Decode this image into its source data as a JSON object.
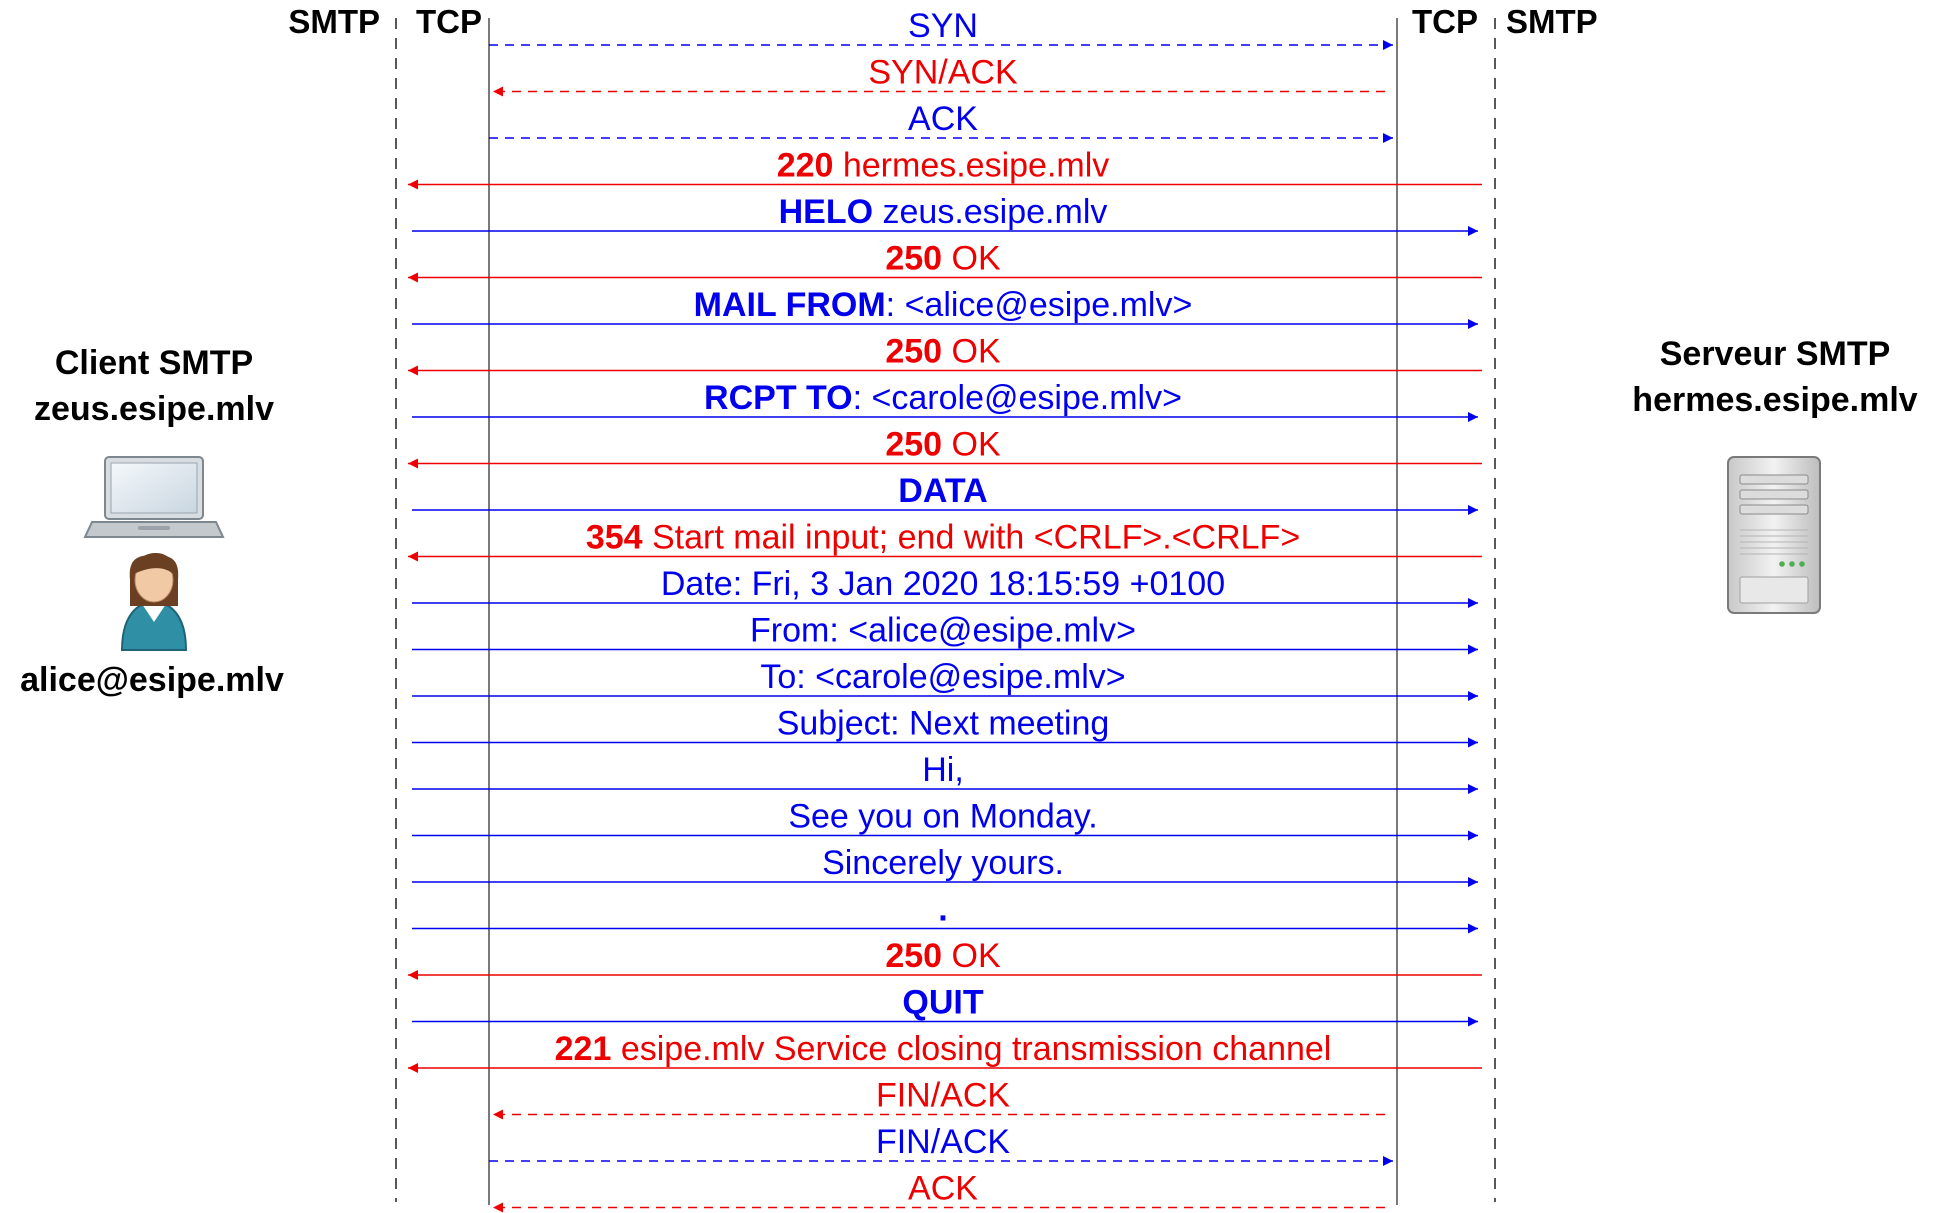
{
  "colors": {
    "client": "#0000ee",
    "server": "#ee0000",
    "text": "#000000"
  },
  "headers": {
    "left_smtp": "SMTP",
    "left_tcp": "TCP",
    "right_tcp": "TCP",
    "right_smtp": "SMTP"
  },
  "client": {
    "title": "Client SMTP",
    "host": "zeus.esipe.mlv",
    "user": "alice@esipe.mlv",
    "icons": [
      "laptop-icon",
      "user-icon"
    ]
  },
  "server": {
    "title": "Serveur SMTP",
    "host": "hermes.esipe.mlv",
    "icons": [
      "server-icon"
    ]
  },
  "messages": [
    {
      "layer": "tcp",
      "dir": "right",
      "bold": "",
      "text": "SYN"
    },
    {
      "layer": "tcp",
      "dir": "left",
      "bold": "",
      "text": "SYN/ACK"
    },
    {
      "layer": "tcp",
      "dir": "right",
      "bold": "",
      "text": "ACK"
    },
    {
      "layer": "smtp",
      "dir": "left",
      "bold": "220",
      "text": " hermes.esipe.mlv"
    },
    {
      "layer": "smtp",
      "dir": "right",
      "bold": "HELO",
      "text": " zeus.esipe.mlv"
    },
    {
      "layer": "smtp",
      "dir": "left",
      "bold": "250",
      "text": " OK"
    },
    {
      "layer": "smtp",
      "dir": "right",
      "bold": "MAIL FROM",
      "text": ": <alice@esipe.mlv>"
    },
    {
      "layer": "smtp",
      "dir": "left",
      "bold": "250",
      "text": " OK"
    },
    {
      "layer": "smtp",
      "dir": "right",
      "bold": "RCPT TO",
      "text": ": <carole@esipe.mlv>"
    },
    {
      "layer": "smtp",
      "dir": "left",
      "bold": "250",
      "text": " OK"
    },
    {
      "layer": "smtp",
      "dir": "right",
      "bold": "DATA",
      "text": ""
    },
    {
      "layer": "smtp",
      "dir": "left",
      "bold": "354",
      "text": " Start mail input; end with <CRLF>.<CRLF>"
    },
    {
      "layer": "smtp",
      "dir": "right",
      "bold": "",
      "text": "Date: Fri, 3 Jan 2020 18:15:59 +0100"
    },
    {
      "layer": "smtp",
      "dir": "right",
      "bold": "",
      "text": "From: <alice@esipe.mlv>"
    },
    {
      "layer": "smtp",
      "dir": "right",
      "bold": "",
      "text": "To: <carole@esipe.mlv>"
    },
    {
      "layer": "smtp",
      "dir": "right",
      "bold": "",
      "text": "Subject: Next meeting"
    },
    {
      "layer": "smtp",
      "dir": "right",
      "bold": "",
      "text": "Hi,"
    },
    {
      "layer": "smtp",
      "dir": "right",
      "bold": "",
      "text": "See you on Monday."
    },
    {
      "layer": "smtp",
      "dir": "right",
      "bold": "",
      "text": "Sincerely yours."
    },
    {
      "layer": "smtp",
      "dir": "right",
      "bold": ".",
      "text": ""
    },
    {
      "layer": "smtp",
      "dir": "left",
      "bold": "250",
      "text": " OK"
    },
    {
      "layer": "smtp",
      "dir": "right",
      "bold": "QUIT",
      "text": ""
    },
    {
      "layer": "smtp",
      "dir": "left",
      "bold": "221",
      "text": " esipe.mlv Service closing transmission channel"
    },
    {
      "layer": "tcp",
      "dir": "left",
      "bold": "",
      "text": "FIN/ACK"
    },
    {
      "layer": "tcp",
      "dir": "right",
      "bold": "",
      "text": "FIN/ACK"
    },
    {
      "layer": "tcp",
      "dir": "left",
      "bold": "",
      "text": "ACK"
    }
  ]
}
